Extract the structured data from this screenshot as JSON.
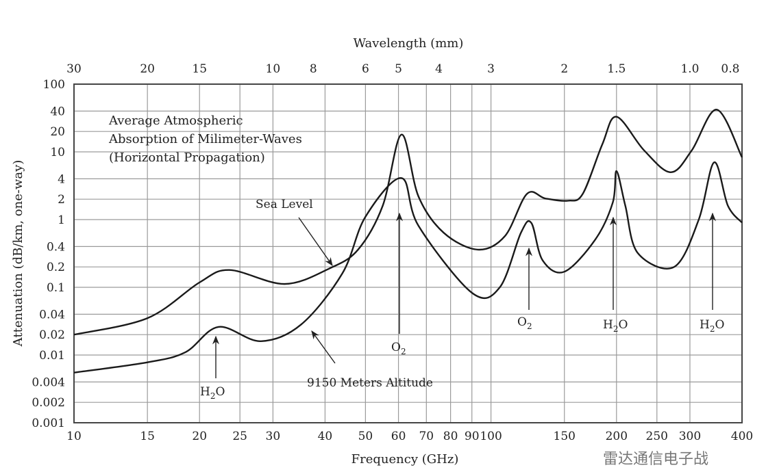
{
  "chart_data": {
    "type": "line",
    "title": "Average Atmospheric Absorption of Milimeter-Waves (Horizontal Propagation)",
    "title_lines": [
      "Average Atmospheric",
      "Absorption of Milimeter-Waves",
      "(Horizontal Propagation)"
    ],
    "xlabel": "Frequency (GHz)",
    "ylabel": "Attenuation (dB/km, one-way)",
    "top_xlabel": "Wavelength (mm)",
    "x_scale": "log",
    "y_scale": "log",
    "xlim": [
      10,
      400
    ],
    "ylim": [
      0.001,
      100
    ],
    "grid": true,
    "x_ticks": [
      10,
      15,
      20,
      25,
      30,
      40,
      50,
      60,
      70,
      80,
      90,
      100,
      150,
      200,
      250,
      300,
      400
    ],
    "x_tick_labels": [
      "10",
      "15",
      "20",
      "25",
      "30",
      "40",
      "50",
      "60",
      "70",
      "80",
      "90",
      "100",
      "150",
      "200",
      "250",
      "300",
      "400"
    ],
    "y_ticks": [
      100,
      40,
      20,
      10,
      4,
      2,
      1,
      0.4,
      0.2,
      0.1,
      0.04,
      0.02,
      0.01,
      0.004,
      0.002,
      0.001
    ],
    "y_tick_labels": [
      "100",
      "40",
      "20",
      "10",
      "4",
      "2",
      "1",
      "0.4",
      "0.2",
      "0.1",
      "0.04",
      "0.02",
      "0.01",
      "0.004",
      "0.002",
      "0.001"
    ],
    "top_ticks_mm": [
      30,
      20,
      15,
      10,
      8,
      6,
      5,
      4,
      3,
      2,
      1.5,
      1.0,
      0.8
    ],
    "top_tick_labels": [
      "30",
      "20",
      "15",
      "10",
      "8",
      "6",
      "5",
      "4",
      "3",
      "2",
      "1.5",
      "1.0",
      "0.8"
    ],
    "series": [
      {
        "name": "Sea Level",
        "x": [
          10,
          15,
          20,
          23.6,
          32,
          41,
          48,
          55,
          61,
          67,
          77,
          93,
          108,
          122,
          135,
          153,
          166,
          185,
          200,
          233,
          270,
          303,
          348,
          400
        ],
        "y": [
          0.02,
          0.035,
          0.118,
          0.18,
          0.112,
          0.19,
          0.36,
          1.6,
          18,
          2.2,
          0.64,
          0.36,
          0.57,
          2.4,
          2.05,
          1.9,
          2.4,
          13,
          33,
          10.5,
          5,
          10.5,
          42,
          8.3
        ]
      },
      {
        "name": "9150 Meters Altitude",
        "x": [
          10,
          15,
          18.5,
          22.2,
          28,
          35,
          44,
          50,
          61,
          67,
          90,
          105,
          118,
          125,
          133,
          150,
          178,
          196,
          200,
          210,
          225,
          275,
          315,
          343,
          370,
          400
        ],
        "y": [
          0.0055,
          0.0078,
          0.011,
          0.026,
          0.016,
          0.028,
          0.16,
          1.1,
          4.1,
          0.81,
          0.083,
          0.1,
          0.64,
          0.89,
          0.25,
          0.17,
          0.51,
          1.8,
          5.2,
          1.6,
          0.32,
          0.2,
          1.0,
          7,
          1.6,
          0.9
        ]
      }
    ],
    "annotations": {
      "sea_level": "Sea Level",
      "altitude": "9150 Meters Altitude",
      "h2o_22": {
        "base": "H",
        "sub": "2",
        "tail": "O",
        "freq": 22
      },
      "o2_60": {
        "base": "O",
        "sub": "2",
        "freq": 60
      },
      "o2_119": {
        "base": "O",
        "sub": "2",
        "freq": 119
      },
      "h2o_183": {
        "base": "H",
        "sub": "2",
        "tail": "O",
        "freq": 183
      },
      "h2o_325": {
        "base": "H",
        "sub": "2",
        "tail": "O",
        "freq": 325
      }
    },
    "watermark": "雷达通信电子战"
  }
}
